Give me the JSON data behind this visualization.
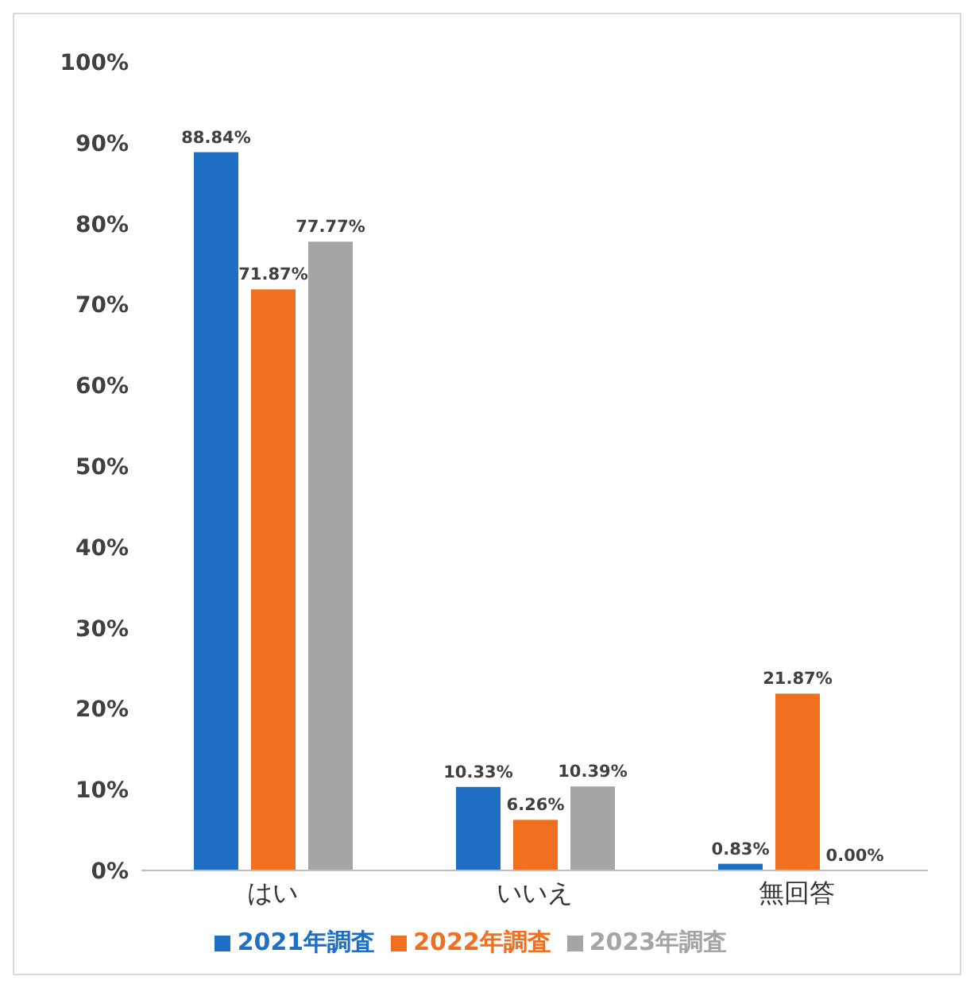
{
  "chart_data": {
    "type": "bar",
    "categories": [
      "はい",
      "いいえ",
      "無回答"
    ],
    "series": [
      {
        "name": "2021年調査",
        "color": "#1f6fc5",
        "values": [
          88.84,
          10.33,
          0.83
        ]
      },
      {
        "name": "2022年調査",
        "color": "#f07020",
        "values": [
          71.87,
          6.26,
          21.87
        ]
      },
      {
        "name": "2023年調査",
        "color": "#a5a5a5",
        "values": [
          77.77,
          10.39,
          0.0
        ]
      }
    ],
    "ylim": [
      0,
      100
    ],
    "yticks": [
      {
        "value": 0,
        "label": "0%"
      },
      {
        "value": 10,
        "label": "10%"
      },
      {
        "value": 20,
        "label": "20%"
      },
      {
        "value": 30,
        "label": "30%"
      },
      {
        "value": 40,
        "label": "40%"
      },
      {
        "value": 50,
        "label": "50%"
      },
      {
        "value": 60,
        "label": "60%"
      },
      {
        "value": 70,
        "label": "70%"
      },
      {
        "value": 80,
        "label": "80%"
      },
      {
        "value": 90,
        "label": "90%"
      },
      {
        "value": 100,
        "label": "100%"
      }
    ],
    "value_labels": [
      [
        "88.84%",
        "10.33%",
        "0.83%"
      ],
      [
        "71.87%",
        "6.26%",
        "21.87%"
      ],
      [
        "77.77%",
        "10.39%",
        "0.00%"
      ]
    ],
    "grid": false,
    "legend": "bottom"
  }
}
